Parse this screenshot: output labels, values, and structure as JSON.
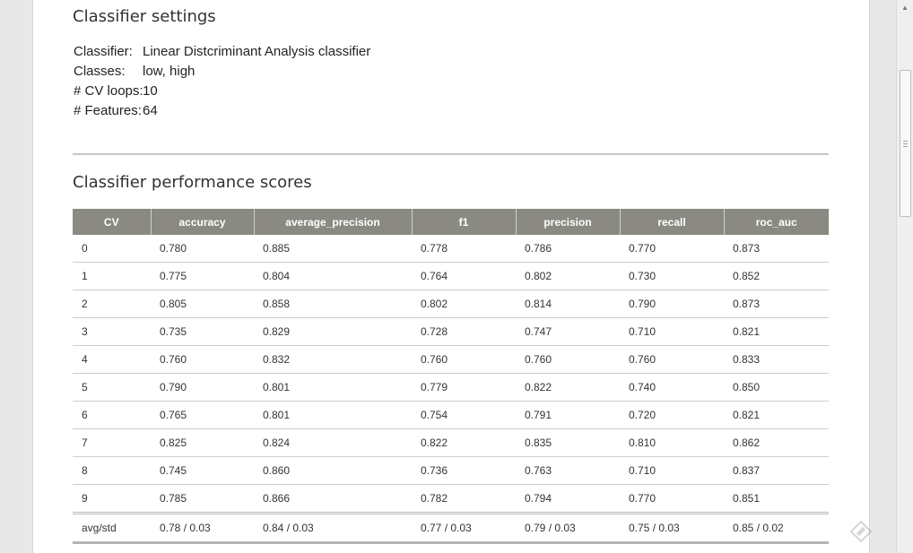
{
  "settings": {
    "heading": "Classifier settings",
    "rows": [
      {
        "key": "Classifier:",
        "value": "Linear Distcriminant Analysis classifier"
      },
      {
        "key": "Classes:",
        "value": "low, high"
      },
      {
        "key": "# CV loops:",
        "value": "10"
      },
      {
        "key": "# Features:",
        "value": "64"
      }
    ]
  },
  "scores": {
    "heading": "Classifier performance scores",
    "columns": [
      "CV",
      "accuracy",
      "average_precision",
      "f1",
      "precision",
      "recall",
      "roc_auc"
    ],
    "rows": [
      [
        "0",
        "0.780",
        "0.885",
        "0.778",
        "0.786",
        "0.770",
        "0.873"
      ],
      [
        "1",
        "0.775",
        "0.804",
        "0.764",
        "0.802",
        "0.730",
        "0.852"
      ],
      [
        "2",
        "0.805",
        "0.858",
        "0.802",
        "0.814",
        "0.790",
        "0.873"
      ],
      [
        "3",
        "0.735",
        "0.829",
        "0.728",
        "0.747",
        "0.710",
        "0.821"
      ],
      [
        "4",
        "0.760",
        "0.832",
        "0.760",
        "0.760",
        "0.760",
        "0.833"
      ],
      [
        "5",
        "0.790",
        "0.801",
        "0.779",
        "0.822",
        "0.740",
        "0.850"
      ],
      [
        "6",
        "0.765",
        "0.801",
        "0.754",
        "0.791",
        "0.720",
        "0.821"
      ],
      [
        "7",
        "0.825",
        "0.824",
        "0.822",
        "0.835",
        "0.810",
        "0.862"
      ],
      [
        "8",
        "0.745",
        "0.860",
        "0.736",
        "0.763",
        "0.710",
        "0.837"
      ],
      [
        "9",
        "0.785",
        "0.866",
        "0.782",
        "0.794",
        "0.770",
        "0.851"
      ]
    ],
    "footer": [
      "avg/std",
      "0.78 / 0.03",
      "0.84 / 0.03",
      "0.77 / 0.03",
      "0.79 / 0.03",
      "0.75 / 0.03",
      "0.85 / 0.02"
    ]
  },
  "icons": {
    "scroll_up": "scroll-up-arrow-icon",
    "watermark": "pen-watermark-icon"
  },
  "colors": {
    "table_header_bg": "#8a8a83",
    "table_header_text": "#ffffff",
    "divider": "#c6c6c6",
    "page_bg": "#ffffff",
    "outer_bg": "#e8e8e8"
  }
}
